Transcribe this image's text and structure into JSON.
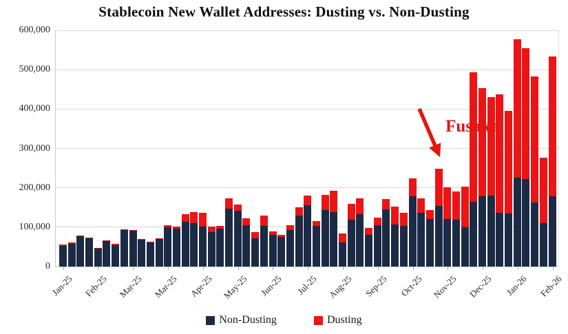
{
  "title": "Stablecoin New Wallet Addresses: Dusting vs. Non-Dusting",
  "annotation": {
    "label": "Fusaka",
    "color": "#dd1616"
  },
  "legend": {
    "items": [
      {
        "label": "Non-Dusting",
        "color": "#1b2a45"
      },
      {
        "label": "Dusting",
        "color": "#ec1414"
      }
    ]
  },
  "y_axis": {
    "tick_labels": [
      "0",
      "100,000",
      "200,000",
      "300,000",
      "400,000",
      "500,000",
      "600,000"
    ],
    "tick_values": [
      0,
      100000,
      200000,
      300000,
      400000,
      500000,
      600000
    ]
  },
  "x_axis": {
    "tick_labels": [
      "Jan-25",
      "Feb-25",
      "Mar-25",
      "Mar-25",
      "Apr-25",
      "May-25",
      "Jun-25",
      "Jul-25",
      "Aug-25",
      "Sep-25",
      "Oct-25",
      "Nov-25",
      "Dec-25",
      "Jan-26",
      "Feb-26"
    ],
    "ticks_every_n_bars": 4
  },
  "chart_data": {
    "type": "bar",
    "stacked": true,
    "title": "Stablecoin New Wallet Addresses: Dusting vs. Non-Dusting",
    "xlabel": "",
    "ylabel": "",
    "ylim": [
      0,
      600000
    ],
    "y_ticks": [
      0,
      100000,
      200000,
      300000,
      400000,
      500000,
      600000
    ],
    "grid": "horizontal",
    "legend_position": "bottom",
    "bar_count": 57,
    "x_tick_labels": [
      "Jan-25",
      "Feb-25",
      "Mar-25",
      "Mar-25",
      "Apr-25",
      "May-25",
      "Jun-25",
      "Jul-25",
      "Aug-25",
      "Sep-25",
      "Oct-25",
      "Nov-25",
      "Dec-25",
      "Jan-26",
      "Feb-26"
    ],
    "x_tick_label_positions_bar_index": [
      0,
      4,
      8,
      12,
      16,
      20,
      24,
      28,
      32,
      36,
      40,
      44,
      48,
      52,
      56
    ],
    "annotation": {
      "label": "Fusaka",
      "points_to_bar_index": 43
    },
    "series": [
      {
        "name": "Non-Dusting",
        "color": "#1b2a45",
        "values": [
          53000,
          58000,
          77000,
          71000,
          45000,
          64000,
          55000,
          93000,
          91000,
          68000,
          62000,
          70000,
          100000,
          97000,
          113000,
          110000,
          102000,
          87000,
          96000,
          147000,
          141000,
          105000,
          71000,
          103000,
          81000,
          75000,
          93000,
          130000,
          156000,
          104000,
          143000,
          138000,
          62000,
          119000,
          133000,
          81000,
          105000,
          146000,
          106000,
          104000,
          178000,
          136000,
          120000,
          154000,
          121000,
          119000,
          99000,
          165000,
          179000,
          181000,
          136000,
          134000,
          225000,
          222000,
          162000,
          111000,
          178000
        ]
      },
      {
        "name": "Dusting",
        "color": "#ec1414",
        "values": [
          3000,
          3000,
          2000,
          3000,
          2000,
          2000,
          3000,
          2000,
          2000,
          2000,
          2000,
          2000,
          5000,
          5000,
          20000,
          29000,
          34000,
          14000,
          8000,
          27000,
          17000,
          17000,
          16000,
          26000,
          9000,
          6000,
          12000,
          20000,
          24000,
          12000,
          39000,
          54000,
          22000,
          41000,
          40000,
          17000,
          20000,
          26000,
          47000,
          32000,
          46000,
          38000,
          23000,
          94000,
          80000,
          72000,
          104000,
          329000,
          275000,
          250000,
          302000,
          261000,
          352000,
          332000,
          321000,
          166000,
          356000
        ]
      }
    ]
  }
}
